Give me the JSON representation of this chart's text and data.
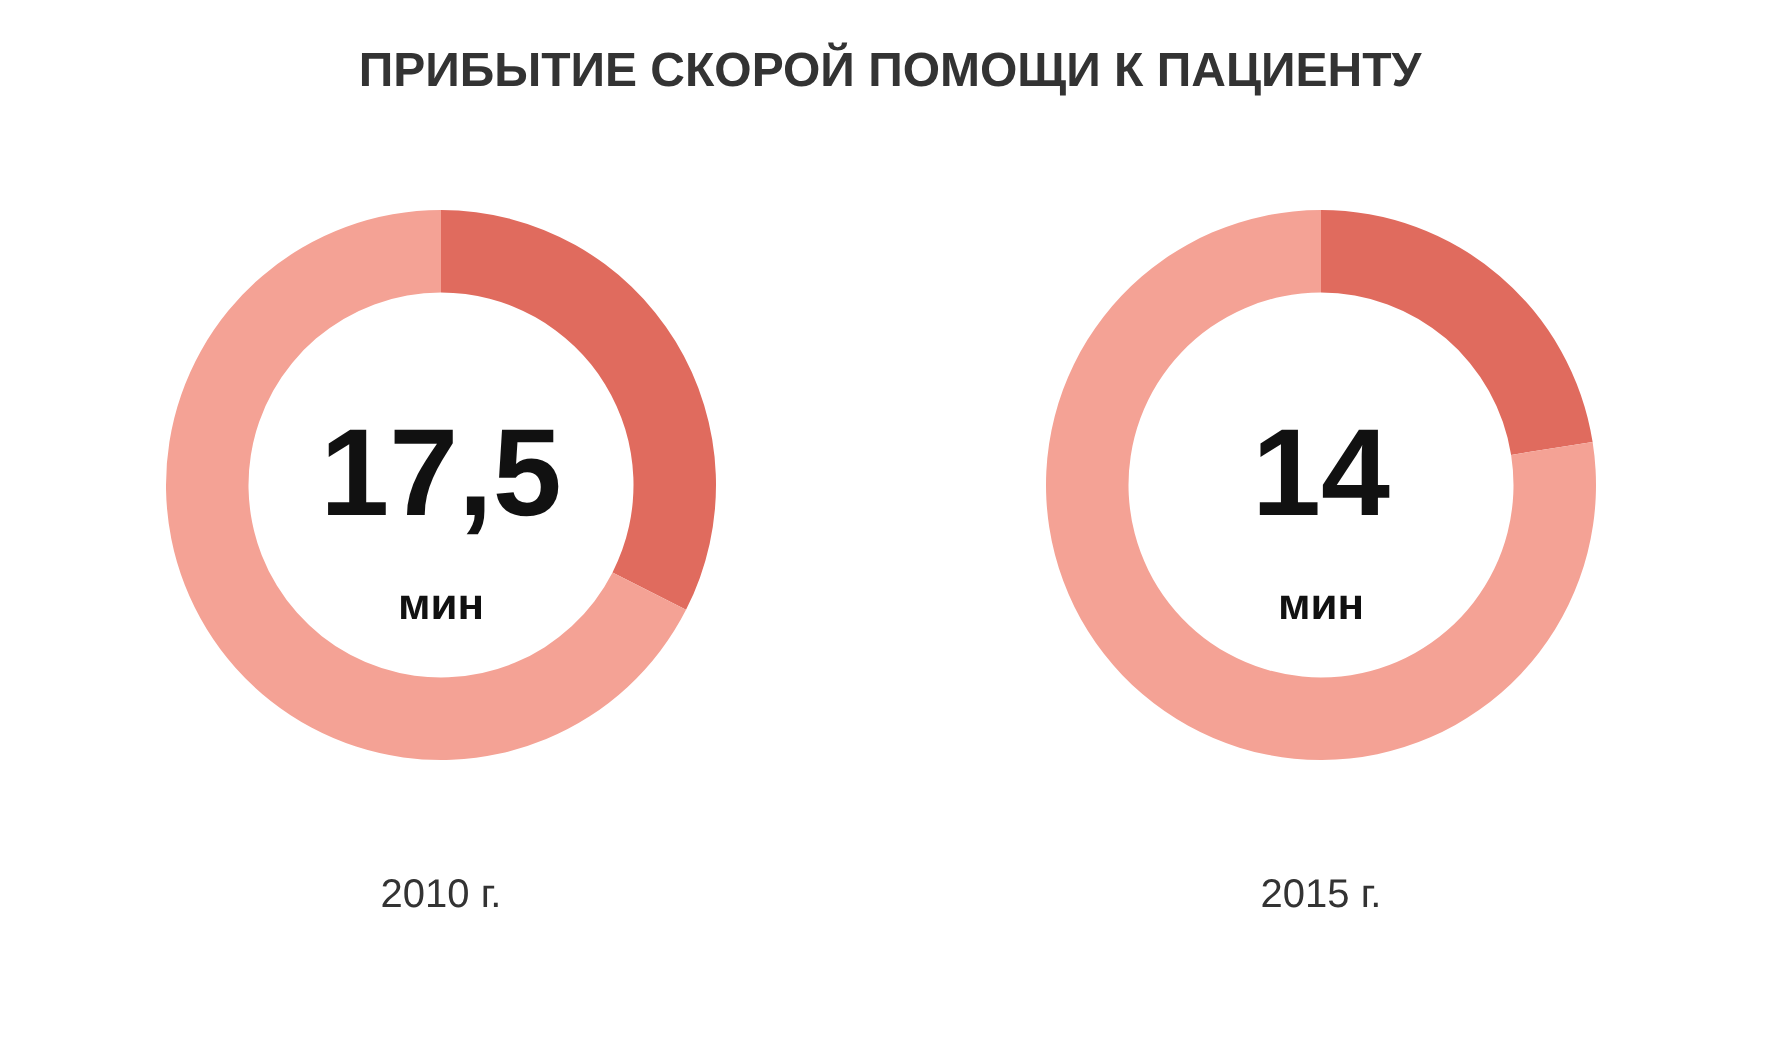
{
  "chart_data": [
    {
      "type": "donut",
      "title": "ПРИБЫТИЕ СКОРОЙ ПОМОЩИ К ПАЦИЕНТУ",
      "categories": [
        null,
        null
      ],
      "values": [
        32.5,
        67.5
      ],
      "colors": [
        "#e06b5e",
        "#f4a295"
      ],
      "annotations": [
        "17,5",
        "мин"
      ],
      "xlabel": "2010 г."
    },
    {
      "type": "donut",
      "categories": [
        null,
        null
      ],
      "values": [
        22.5,
        77.5
      ],
      "colors": [
        "#e06b5e",
        "#f4a295"
      ],
      "annotations": [
        "14",
        "мин"
      ],
      "xlabel": "2015 г."
    }
  ]
}
